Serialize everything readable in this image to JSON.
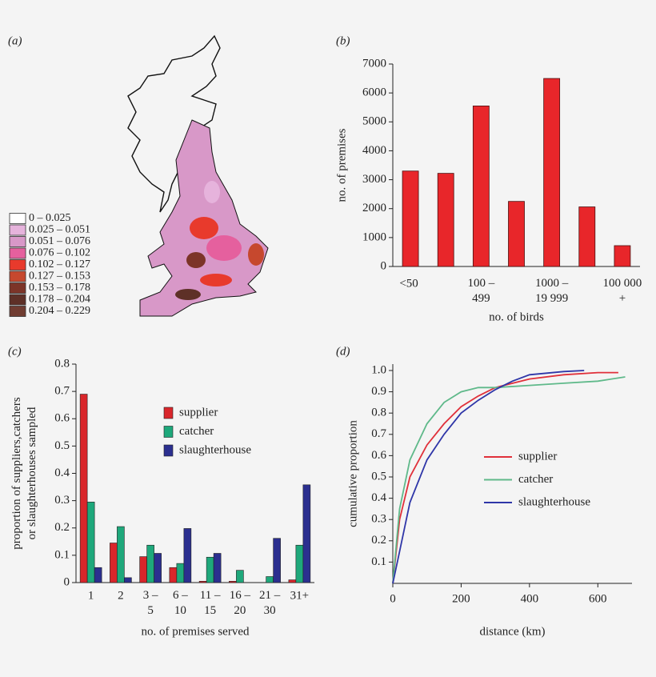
{
  "chart_data": [
    {
      "type": "map",
      "panel_label": "(a)",
      "legend": [
        {
          "label": "0 – 0.025",
          "color": "#ffffff"
        },
        {
          "label": "0.025 – 0.051",
          "color": "#e6b3dc"
        },
        {
          "label": "0.051 – 0.076",
          "color": "#d898c8"
        },
        {
          "label": "0.076 – 0.102",
          "color": "#e5609e"
        },
        {
          "label": "0.102 – 0.127",
          "color": "#e83a2c"
        },
        {
          "label": "0.127 – 0.153",
          "color": "#c6482e"
        },
        {
          "label": "0.153 – 0.178",
          "color": "#7c3428"
        },
        {
          "label": "0.178 – 0.204",
          "color": "#5e3027"
        },
        {
          "label": "0.204 – 0.229",
          "color": "#703c31"
        }
      ]
    },
    {
      "type": "bar",
      "panel_label": "(b)",
      "categories": [
        "<50",
        null,
        "100 –\n499",
        null,
        "1000 –\n19 999",
        null,
        "100 000\n+"
      ],
      "values": [
        3300,
        3220,
        5550,
        2250,
        6500,
        2060,
        720
      ],
      "color": "#e8262a",
      "ylim": [
        0,
        7000
      ],
      "yticks": [
        0,
        1000,
        2000,
        3000,
        4000,
        5000,
        6000,
        7000
      ],
      "x_label": "no. of birds",
      "y_label": "no. of premises"
    },
    {
      "type": "grouped_bar",
      "panel_label": "(c)",
      "categories": [
        "1",
        "2",
        "3 –\n5",
        "6 –\n10",
        "11 –\n15",
        "16 –\n20",
        "21 –\n30",
        "31+"
      ],
      "series": [
        {
          "name": "supplier",
          "color": "#d9262b",
          "values": [
            0.69,
            0.145,
            0.095,
            0.055,
            0.005,
            0.005,
            0,
            0.01
          ]
        },
        {
          "name": "catcher",
          "color": "#1ea87b",
          "values": [
            0.295,
            0.205,
            0.137,
            0.07,
            0.093,
            0.045,
            0.022,
            0.137
          ]
        },
        {
          "name": "slaughterhouse",
          "color": "#2b2f8f",
          "values": [
            0.055,
            0.018,
            0.107,
            0.198,
            0.107,
            0,
            0.162,
            0.358
          ]
        }
      ],
      "ylim": [
        0,
        0.8
      ],
      "yticks": [
        0,
        0.1,
        0.2,
        0.3,
        0.4,
        0.5,
        0.6,
        0.7,
        0.8
      ],
      "x_label": "no. of premises served",
      "y_label": "proportion of suppliers,catchers\nor slaughterhouses sampled"
    },
    {
      "type": "line",
      "panel_label": "(d)",
      "series": [
        {
          "name": "supplier",
          "color": "#e0303a",
          "x": [
            0,
            20,
            50,
            100,
            150,
            200,
            250,
            300,
            400,
            500,
            600,
            660
          ],
          "values": [
            0,
            0.3,
            0.5,
            0.65,
            0.75,
            0.83,
            0.88,
            0.92,
            0.96,
            0.98,
            0.99,
            0.99
          ]
        },
        {
          "name": "catcher",
          "color": "#5fb98a",
          "x": [
            0,
            20,
            50,
            100,
            150,
            200,
            250,
            300,
            400,
            500,
            600,
            680
          ],
          "values": [
            0,
            0.35,
            0.58,
            0.75,
            0.85,
            0.9,
            0.92,
            0.92,
            0.93,
            0.94,
            0.95,
            0.97
          ]
        },
        {
          "name": "slaughterhouse",
          "color": "#2f36a8",
          "x": [
            0,
            20,
            50,
            100,
            150,
            200,
            250,
            300,
            350,
            400,
            500,
            560
          ],
          "values": [
            0,
            0.15,
            0.38,
            0.58,
            0.7,
            0.8,
            0.86,
            0.91,
            0.95,
            0.98,
            0.995,
            1.0
          ]
        }
      ],
      "xlim": [
        0,
        700
      ],
      "xticks": [
        0,
        200,
        400,
        600
      ],
      "ylim": [
        0,
        1.03
      ],
      "yticks": [
        0.1,
        0.2,
        0.3,
        0.4,
        0.5,
        0.6,
        0.7,
        0.8,
        0.9,
        {
          "value": 1,
          "label": "1.0"
        }
      ],
      "x_label": "distance (km)",
      "y_label": "cumulative proportion"
    }
  ]
}
